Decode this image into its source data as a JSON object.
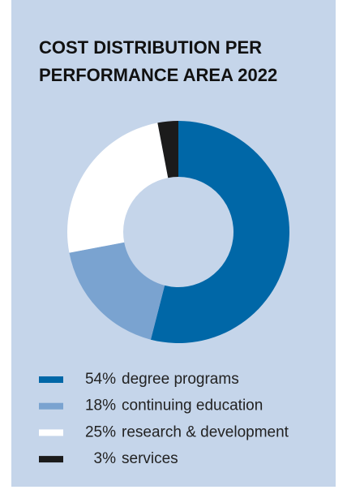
{
  "chart_data": {
    "type": "donut",
    "title": "COST DISTRIBUTION PER PERFORMANCE AREA 2022",
    "categories": [
      "degree programs",
      "continuing education",
      "research & development",
      "services"
    ],
    "values": [
      54,
      18,
      25,
      3
    ],
    "value_labels": [
      "54%",
      "18%",
      "25%",
      "3%"
    ],
    "colors": [
      "#0067a7",
      "#7aa3d0",
      "#ffffff",
      "#1b1b1b"
    ]
  }
}
